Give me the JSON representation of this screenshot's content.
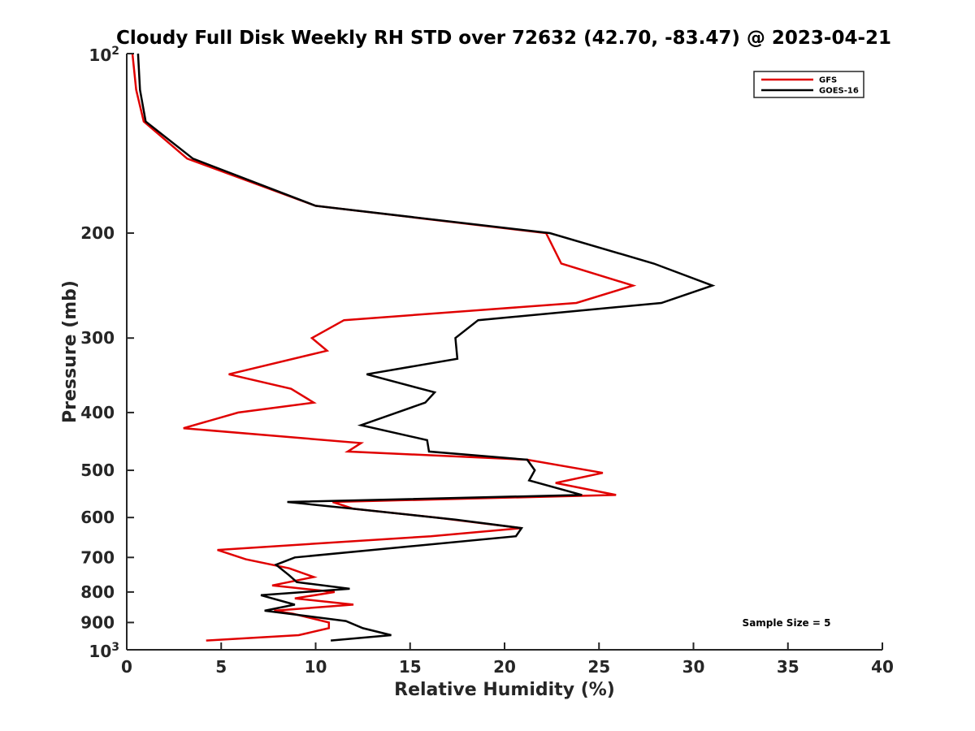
{
  "chart_data": {
    "type": "line",
    "title": "Cloudy Full Disk Weekly RH STD over 72632 (42.70, -83.47) @ 2023-04-21",
    "xlabel": "Relative Humidity (%)",
    "ylabel": "Pressure (mb)",
    "xlim": [
      0,
      40
    ],
    "ylim": [
      1000,
      100
    ],
    "y_scale": "log",
    "y_reversed": true,
    "grid": false,
    "legend_position": "top-right",
    "x_ticks": [
      0,
      5,
      10,
      15,
      20,
      25,
      30,
      35,
      40
    ],
    "y_ticks": [
      {
        "value": 100,
        "base": "10",
        "exp": "2"
      },
      {
        "value": 200,
        "label": "200"
      },
      {
        "value": 300,
        "label": "300"
      },
      {
        "value": 400,
        "label": "400"
      },
      {
        "value": 500,
        "label": "500"
      },
      {
        "value": 600,
        "label": "600"
      },
      {
        "value": 700,
        "label": "700"
      },
      {
        "value": 800,
        "label": "800"
      },
      {
        "value": 900,
        "label": "900"
      },
      {
        "value": 1000,
        "base": "10",
        "exp": "3"
      }
    ],
    "annotation": "Sample Size = 5",
    "series": [
      {
        "name": "GFS",
        "color": "#e00000",
        "points": [
          [
            0.3,
            100
          ],
          [
            0.5,
            115
          ],
          [
            0.9,
            130
          ],
          [
            3.2,
            150
          ],
          [
            10.0,
            180
          ],
          [
            22.2,
            200
          ],
          [
            23.0,
            225
          ],
          [
            26.8,
            245
          ],
          [
            23.8,
            262
          ],
          [
            11.5,
            280
          ],
          [
            9.8,
            300
          ],
          [
            10.6,
            315
          ],
          [
            5.4,
            345
          ],
          [
            8.7,
            365
          ],
          [
            9.9,
            385
          ],
          [
            5.9,
            400
          ],
          [
            3.0,
            425
          ],
          [
            12.4,
            450
          ],
          [
            11.7,
            465
          ],
          [
            21.2,
            480
          ],
          [
            25.2,
            505
          ],
          [
            22.7,
            525
          ],
          [
            25.9,
            550
          ],
          [
            10.9,
            565
          ],
          [
            12.0,
            580
          ],
          [
            16.4,
            600
          ],
          [
            20.9,
            625
          ],
          [
            16.1,
            645
          ],
          [
            4.8,
            680
          ],
          [
            6.3,
            705
          ],
          [
            8.6,
            730
          ],
          [
            9.9,
            755
          ],
          [
            7.7,
            780
          ],
          [
            11.0,
            800
          ],
          [
            8.9,
            820
          ],
          [
            12.0,
            840
          ],
          [
            7.8,
            860
          ],
          [
            8.8,
            870
          ],
          [
            10.7,
            900
          ],
          [
            10.7,
            920
          ],
          [
            9.1,
            945
          ],
          [
            4.2,
            965
          ]
        ]
      },
      {
        "name": "GOES-16",
        "color": "#000000",
        "points": [
          [
            0.6,
            100
          ],
          [
            0.7,
            115
          ],
          [
            1.0,
            130
          ],
          [
            3.5,
            150
          ],
          [
            10.0,
            180
          ],
          [
            22.4,
            200
          ],
          [
            27.9,
            225
          ],
          [
            31.0,
            245
          ],
          [
            28.3,
            262
          ],
          [
            18.6,
            280
          ],
          [
            17.4,
            300
          ],
          [
            17.5,
            325
          ],
          [
            12.7,
            345
          ],
          [
            16.3,
            370
          ],
          [
            15.8,
            385
          ],
          [
            12.4,
            420
          ],
          [
            15.9,
            445
          ],
          [
            16.0,
            465
          ],
          [
            21.2,
            480
          ],
          [
            21.6,
            500
          ],
          [
            21.3,
            520
          ],
          [
            24.1,
            550
          ],
          [
            8.5,
            565
          ],
          [
            12.0,
            580
          ],
          [
            17.4,
            605
          ],
          [
            20.9,
            625
          ],
          [
            20.6,
            645
          ],
          [
            8.9,
            700
          ],
          [
            7.9,
            720
          ],
          [
            8.6,
            750
          ],
          [
            9.0,
            770
          ],
          [
            11.8,
            790
          ],
          [
            7.1,
            810
          ],
          [
            8.6,
            835
          ],
          [
            8.9,
            840
          ],
          [
            7.3,
            860
          ],
          [
            11.6,
            895
          ],
          [
            12.5,
            920
          ],
          [
            14.0,
            945
          ],
          [
            10.8,
            965
          ]
        ]
      }
    ]
  }
}
